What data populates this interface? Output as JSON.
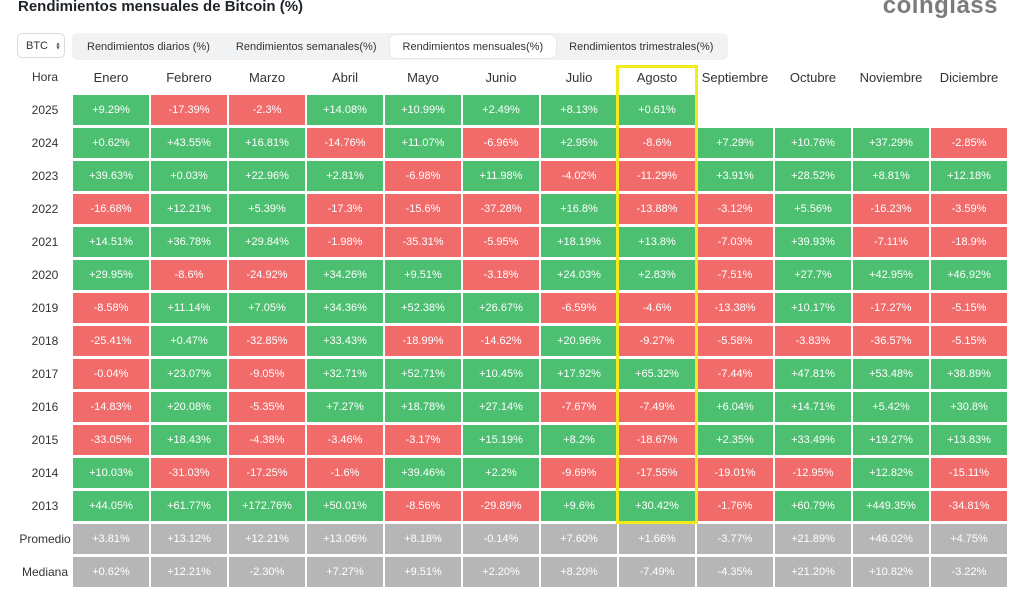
{
  "title": "Rendimientos mensuales de Bitcoin (%)",
  "brand": "coinglass",
  "asset_select": {
    "value": "BTC",
    "icon": "chevron-updown-icon"
  },
  "tabs": [
    {
      "label": "Rendimientos diarios (%)",
      "active": false
    },
    {
      "label": "Rendimientos semanales(%)",
      "active": false
    },
    {
      "label": "Rendimientos mensuales(%)",
      "active": true
    },
    {
      "label": "Rendimientos trimestrales(%)",
      "active": false
    }
  ],
  "table": {
    "corner_label": "Hora",
    "months": [
      "Enero",
      "Febrero",
      "Marzo",
      "Abril",
      "Mayo",
      "Junio",
      "Julio",
      "Agosto",
      "Septiembre",
      "Octubre",
      "Noviembre",
      "Diciembre"
    ],
    "highlighted_month": "Agosto",
    "colors": {
      "positive": "#4cbf71",
      "negative": "#f26b6b",
      "summary": "#b6b6b6",
      "highlight": "#f4ea1a"
    },
    "rows": [
      {
        "year": "2025",
        "values": [
          "+9.29%",
          "-17.39%",
          "-2.3%",
          "+14.08%",
          "+10.99%",
          "+2.49%",
          "+8.13%",
          "+0.61%",
          "",
          "",
          "",
          ""
        ]
      },
      {
        "year": "2024",
        "values": [
          "+0.62%",
          "+43.55%",
          "+16.81%",
          "-14.76%",
          "+11.07%",
          "-6.96%",
          "+2.95%",
          "-8.6%",
          "+7.29%",
          "+10.76%",
          "+37.29%",
          "-2.85%"
        ]
      },
      {
        "year": "2023",
        "values": [
          "+39.63%",
          "+0.03%",
          "+22.96%",
          "+2.81%",
          "-6.98%",
          "+11.98%",
          "-4.02%",
          "-11.29%",
          "+3.91%",
          "+28.52%",
          "+8.81%",
          "+12.18%"
        ]
      },
      {
        "year": "2022",
        "values": [
          "-16.68%",
          "+12.21%",
          "+5.39%",
          "-17.3%",
          "-15.6%",
          "-37.28%",
          "+16.8%",
          "-13.88%",
          "-3.12%",
          "+5.56%",
          "-16.23%",
          "-3.59%"
        ]
      },
      {
        "year": "2021",
        "values": [
          "+14.51%",
          "+36.78%",
          "+29.84%",
          "-1.98%",
          "-35.31%",
          "-5.95%",
          "+18.19%",
          "+13.8%",
          "-7.03%",
          "+39.93%",
          "-7.11%",
          "-18.9%"
        ]
      },
      {
        "year": "2020",
        "values": [
          "+29.95%",
          "-8.6%",
          "-24.92%",
          "+34.26%",
          "+9.51%",
          "-3.18%",
          "+24.03%",
          "+2.83%",
          "-7.51%",
          "+27.7%",
          "+42.95%",
          "+46.92%"
        ]
      },
      {
        "year": "2019",
        "values": [
          "-8.58%",
          "+11.14%",
          "+7.05%",
          "+34.36%",
          "+52.38%",
          "+26.67%",
          "-6.59%",
          "-4.6%",
          "-13.38%",
          "+10.17%",
          "-17.27%",
          "-5.15%"
        ]
      },
      {
        "year": "2018",
        "values": [
          "-25.41%",
          "+0.47%",
          "-32.85%",
          "+33.43%",
          "-18.99%",
          "-14.62%",
          "+20.96%",
          "-9.27%",
          "-5.58%",
          "-3.83%",
          "-36.57%",
          "-5.15%"
        ]
      },
      {
        "year": "2017",
        "values": [
          "-0.04%",
          "+23.07%",
          "-9.05%",
          "+32.71%",
          "+52.71%",
          "+10.45%",
          "+17.92%",
          "+65.32%",
          "-7.44%",
          "+47.81%",
          "+53.48%",
          "+38.89%"
        ]
      },
      {
        "year": "2016",
        "values": [
          "-14.83%",
          "+20.08%",
          "-5.35%",
          "+7.27%",
          "+18.78%",
          "+27.14%",
          "-7.67%",
          "-7.49%",
          "+6.04%",
          "+14.71%",
          "+5.42%",
          "+30.8%"
        ]
      },
      {
        "year": "2015",
        "values": [
          "-33.05%",
          "+18.43%",
          "-4.38%",
          "-3.46%",
          "-3.17%",
          "+15.19%",
          "+8.2%",
          "-18.67%",
          "+2.35%",
          "+33.49%",
          "+19.27%",
          "+13.83%"
        ]
      },
      {
        "year": "2014",
        "values": [
          "+10.03%",
          "-31.03%",
          "-17.25%",
          "-1.6%",
          "+39.46%",
          "+2.2%",
          "-9.69%",
          "-17.55%",
          "-19.01%",
          "-12.95%",
          "+12.82%",
          "-15.11%"
        ]
      },
      {
        "year": "2013",
        "values": [
          "+44.05%",
          "+61.77%",
          "+172.76%",
          "+50.01%",
          "-8.56%",
          "-29.89%",
          "+9.6%",
          "+30.42%",
          "-1.76%",
          "+60.79%",
          "+449.35%",
          "-34.81%"
        ]
      }
    ],
    "summary_rows": [
      {
        "label": "Promedio",
        "values": [
          "+3.81%",
          "+13.12%",
          "+12.21%",
          "+13.06%",
          "+8.18%",
          "-0.14%",
          "+7.60%",
          "+1.66%",
          "-3.77%",
          "+21.89%",
          "+46.02%",
          "+4.75%"
        ]
      },
      {
        "label": "Mediana",
        "values": [
          "+0.62%",
          "+12.21%",
          "-2.30%",
          "+7.27%",
          "+9.51%",
          "+2.20%",
          "+8.20%",
          "-7.49%",
          "-4.35%",
          "+21.20%",
          "+10.82%",
          "-3.22%"
        ]
      }
    ]
  }
}
